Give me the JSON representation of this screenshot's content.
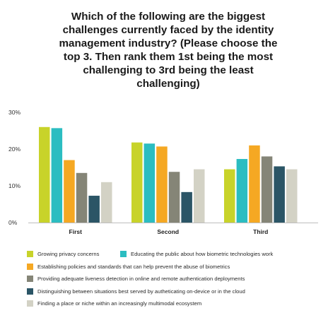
{
  "chart_data": {
    "type": "bar",
    "title_lines": [
      "Which of the following are the biggest",
      "challenges currently faced by the identity",
      "management industry? (Please choose the",
      "top 3. Then rank them 1st being the most",
      "challenging to 3rd being the least",
      "challenging)"
    ],
    "categories": [
      "First",
      "Second",
      "Third"
    ],
    "ylim": [
      0,
      30
    ],
    "yticks": [
      0,
      10,
      20,
      30
    ],
    "ytick_labels": [
      "0%",
      "10%",
      "20%",
      "30%"
    ],
    "grid": false,
    "legend_position": "bottom",
    "series": [
      {
        "name": "Growing privacy concerns",
        "color": "#c8d32a",
        "values": [
          26.0,
          21.8,
          14.5
        ]
      },
      {
        "name": "Educating the public about how biometric technologies work",
        "color": "#2bbdc1",
        "values": [
          25.7,
          21.5,
          17.3
        ]
      },
      {
        "name": "Establishing policies and standards that can help prevent the abuse of biometrics",
        "color": "#f5a823",
        "values": [
          17.0,
          20.7,
          21.0
        ]
      },
      {
        "name": "Providing adequate liveness detection in online and remote authentication deployments",
        "color": "#858577",
        "values": [
          13.5,
          13.8,
          18.0
        ]
      },
      {
        "name": "Distinguishing between situations best served by autheticating on-device or in the cloud",
        "color": "#2b5566",
        "values": [
          7.3,
          8.3,
          15.3
        ]
      },
      {
        "name": "Finding a place or niche within an increasingly multimodal ecosystem",
        "color": "#d3d2c5",
        "values": [
          11.0,
          14.5,
          14.5
        ]
      }
    ]
  }
}
